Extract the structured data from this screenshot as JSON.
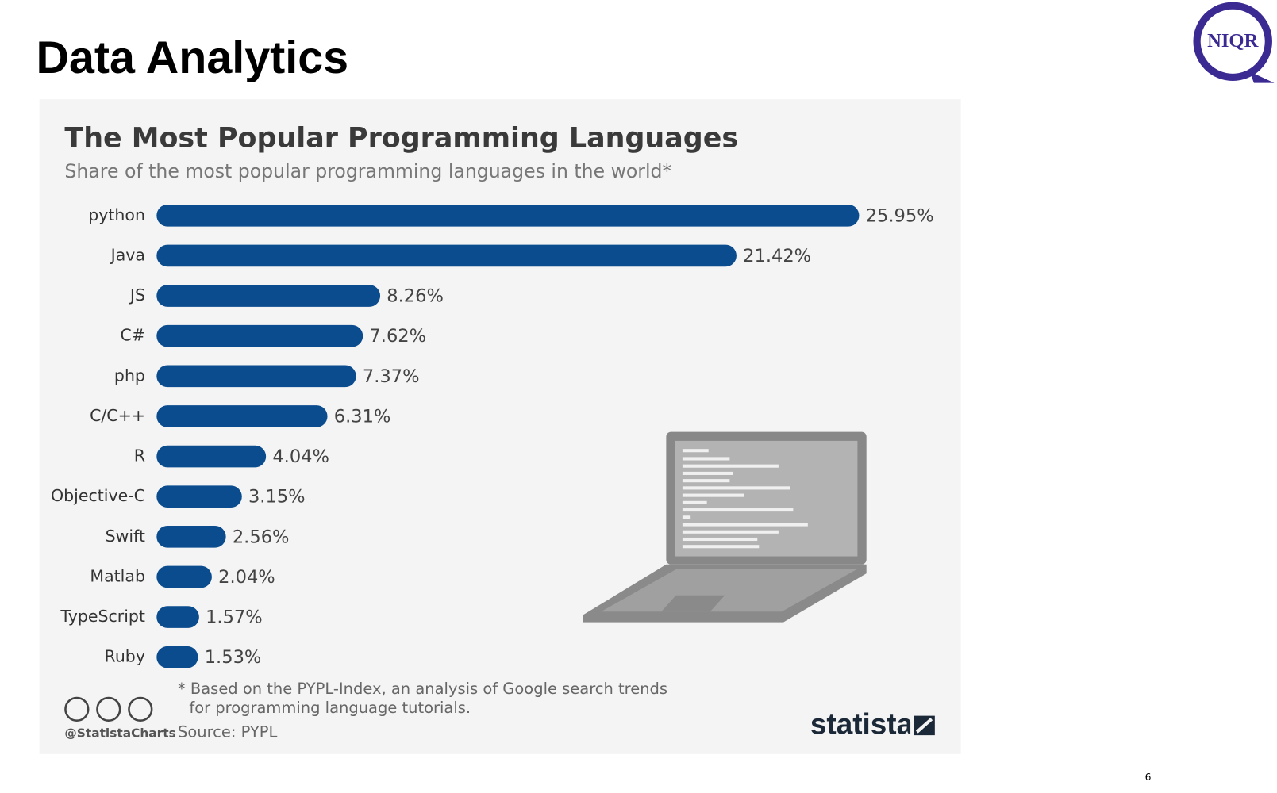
{
  "slide_title": "Data Analytics",
  "logo": "NIQR",
  "page_number": "6",
  "chart_data": {
    "type": "bar",
    "orientation": "horizontal",
    "title": "The Most Popular Programming Languages",
    "subtitle": "Share of the most popular programming languages in the world*",
    "categories": [
      "python",
      "Java",
      "JS",
      "C#",
      "php",
      "C/C++",
      "R",
      "Objective-C",
      "Swift",
      "Matlab",
      "TypeScript",
      "Ruby"
    ],
    "values": [
      25.95,
      21.42,
      8.26,
      7.62,
      7.37,
      6.31,
      4.04,
      3.15,
      2.56,
      2.04,
      1.57,
      1.53
    ],
    "value_labels": [
      "25.95%",
      "21.42%",
      "8.26%",
      "7.62%",
      "7.37%",
      "6.31%",
      "4.04%",
      "3.15%",
      "2.56%",
      "2.04%",
      "1.57%",
      "1.53%"
    ],
    "color": "#0b4c8f",
    "footnote": [
      "* Based on the PYPL-Index, an analysis of Google search trends",
      "for programming language tutorials."
    ],
    "credit": "@StatistaCharts",
    "source": "Source: PYPL",
    "brand": "statista"
  }
}
